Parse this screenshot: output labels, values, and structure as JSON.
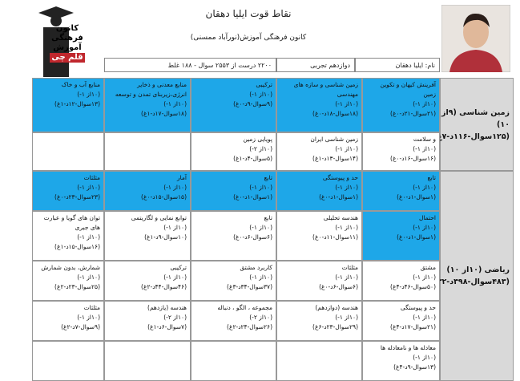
{
  "header": {
    "title": "نقاط قوت ایلیا دهقان",
    "subtitle": "کانون فرهنگی آموزش(نورآباد ممسنی)",
    "name": "نام: ایلیا دهقان",
    "grade": "دوازدهم تجربی",
    "summary": "۲۲۰۰ درست از ۲۵۵۳ سوال - ۱۸۸ غلط",
    "logo_lines": [
      "کانون",
      "فرهنگی",
      "آموزش",
      "قلم چی"
    ]
  },
  "sections": [
    {
      "label": "زمین شناسی (۹از ۱۰) (۱۲۵سوال-۱۱۶د-۷غ)",
      "rows": [
        [
          {
            "title": "آفرینش کیهان و تکوین زمین",
            "rank": "(۱۰از ۱-)",
            "stats": "(۲۱سوال-۲۱د-۰غ)",
            "color": "#1ea7e8"
          },
          {
            "title": "زمین شناسی و سازه های مهندسی",
            "rank": "(۱۰از ۱-)",
            "stats": "(۱۸سوال-۱۸د-۰غ)",
            "color": "#1ea7e8"
          },
          {
            "title": "ترکیبی",
            "rank": "(۱۰از ۱-)",
            "stats": "(۹سوال-۹د-۰غ)",
            "color": "#1ea7e8"
          },
          {
            "title": "منابع معدنی و ذخایر انرژی،زیربنای تمدن و توسعه",
            "rank": "(۱۰از ۱-)",
            "stats": "(۱۸سوال-۱۷د-۱غ)",
            "color": "#1ea7e8"
          },
          {
            "title": "منابع آب و خاک",
            "rank": "(۱۰از ۱-)",
            "stats": "(۱۳سوال-۱۲د-۱غ)",
            "color": "#1ea7e8"
          }
        ],
        [
          {
            "title": "و سلامت",
            "rank": "(۱۰از ۱-)",
            "stats": "(۱۶سوال-۱۶د-۰غ)"
          },
          {
            "title": "زمین شناسی ایران",
            "rank": "(۱۰از ۱-)",
            "stats": "(۱۴سوال-۱۳د-۱غ)"
          },
          {
            "title": "پویایی زمین",
            "rank": "(۱۰از ۲-)",
            "stats": "(۵سوال-۴د-۱غ)"
          },
          null,
          null
        ]
      ]
    },
    {
      "label": "ریاضی (۱۰از ۱۰) (۴۸۳سوال-۳۹۸د-۳۲غ)",
      "rows": [
        [
          {
            "title": "تابع",
            "rank": "(۱۰از ۱-)",
            "stats": "(۱سوال-۱د-۰غ)",
            "color": "#1ea7e8"
          },
          {
            "title": "حد و پیوستگی",
            "rank": "(۱۰از ۱-)",
            "stats": "(۱سوال-۱د-۰غ)",
            "color": "#1ea7e8"
          },
          {
            "title": "تابع",
            "rank": "(۱۰از ۱-)",
            "stats": "(۱سوال-۱د-۰غ)",
            "color": "#1ea7e8"
          },
          {
            "title": "آمار",
            "rank": "(۱۰از ۱-)",
            "stats": "(۱۵سوال-۱۵د-۰غ)",
            "color": "#1ea7e8"
          },
          {
            "title": "مثلثات",
            "rank": "(۱۰از ۱-)",
            "stats": "(۲۳سوال-۲۳د-۰غ)",
            "color": "#1ea7e8"
          }
        ],
        [
          {
            "title": "احتمال",
            "rank": "(۱۰از ۱-)",
            "stats": "(۱سوال-۱د-۰غ)",
            "color": "#1ea7e8"
          },
          {
            "title": "هندسه تحلیلی",
            "rank": "(۱۰از ۱-)",
            "stats": "(۱۱سوال-۱۱د-۰غ)"
          },
          {
            "title": "تابع",
            "rank": "(۱۰از ۱-)",
            "stats": "(۶سوال-۶د-۰غ)"
          },
          {
            "title": "توابع نمایی و لگاریتمی",
            "rank": "(۱۰از ۱-)",
            "stats": "(۱۰سوال-۹د-۱غ)"
          },
          {
            "title": "توان های گویا و عبارت های جبری",
            "rank": "(۱۰از ۱-)",
            "stats": "(۱۶سوال-۱۵د-۱غ)"
          }
        ],
        [
          {
            "title": "مشتق",
            "rank": "(۱۰از ۱-)",
            "stats": "(۵۰سوال-۴۶د-۴غ)"
          },
          {
            "title": "مثلثات",
            "rank": "(۱۰از ۱-)",
            "stats": "(۶سوال-۶د-۰غ)"
          },
          {
            "title": "کاربرد مشتق",
            "rank": "(۱۰از ۱-)",
            "stats": "(۳۷سوال-۳۴د-۳غ)"
          },
          {
            "title": "ترکیبی",
            "rank": "(۱۰از ۱-)",
            "stats": "(۴۶سوال-۴۴د-۲غ)"
          },
          {
            "title": "شمارش، بدون شمارش",
            "rank": "(۱۰از ۱-)",
            "stats": "(۲۵سوال-۲۳د-۲غ)"
          }
        ],
        [
          {
            "title": "حد و پیوستگی",
            "rank": "(۱۰از ۱-)",
            "stats": "(۲۱سوال-۱۷د-۴غ)"
          },
          {
            "title": "هندسه (دوازدهم)",
            "rank": "(۱۰از ۱-)",
            "stats": "(۲۹سوال-۲۳د-۶غ)"
          },
          {
            "title": "مجموعه ، الگو ، دنباله",
            "rank": "(۱۰از ۲-)",
            "stats": "(۲۶سوال-۲۴د-۲غ)"
          },
          {
            "title": "هندسه (یازدهم)",
            "rank": "(۱۰از ۲-)",
            "stats": "(۷سوال-۶د-۱غ)"
          },
          {
            "title": "مثلثات",
            "rank": "(۱۰از ۱-)",
            "stats": "(۹سوال-۷د-۲غ)"
          }
        ],
        [
          {
            "title": "معادله ها و نامعادله ها",
            "rank": "(۱۰از ۱-)",
            "stats": "(۱۳سوال-۹د-۴غ)"
          },
          null,
          null,
          null,
          null
        ]
      ]
    }
  ]
}
